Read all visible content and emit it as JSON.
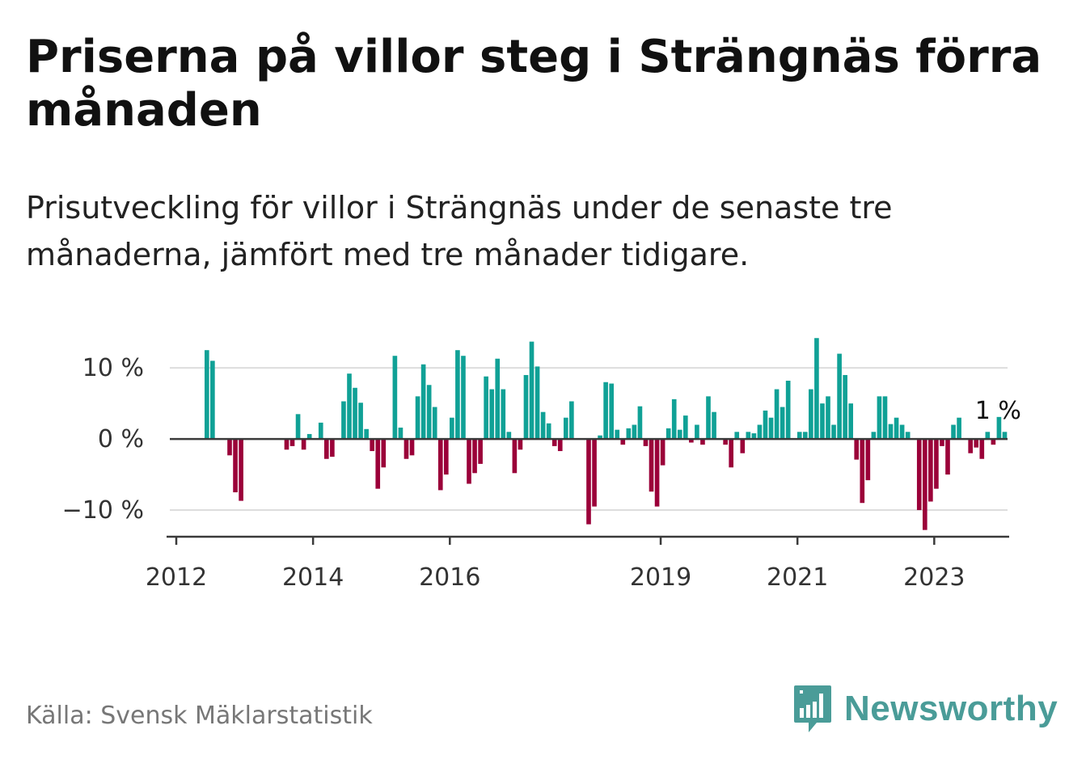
{
  "title": "Priserna på villor steg i Strängnäs förra månaden",
  "subtitle": "Prisutveckling för villor i Strängnäs under de senaste tre månaderna, jämfört med tre månader tidigare.",
  "source": "Källa: Svensk Mäklarstatistik",
  "brand": {
    "name": "Newsworthy",
    "icon": "bar-chart-speech-icon",
    "color": "#4a9c98"
  },
  "colors": {
    "positive": "#10a196",
    "negative": "#9b0039",
    "zero_line": "#3a3a3a",
    "grid": "#dddddd"
  },
  "chart_data": {
    "type": "bar",
    "title": "",
    "xlabel": "",
    "ylabel": "",
    "ylim": [
      -15,
      14
    ],
    "grid": true,
    "y_ticks": [
      {
        "value": 10,
        "label": "10 %"
      },
      {
        "value": 0,
        "label": "0 %"
      },
      {
        "value": -10,
        "label": "−10 %"
      }
    ],
    "x_ticks": [
      {
        "index": 0,
        "label": "2012"
      },
      {
        "index": 24,
        "label": "2014"
      },
      {
        "index": 48,
        "label": "2016"
      },
      {
        "index": 85,
        "label": "2019"
      },
      {
        "index": 109,
        "label": "2021"
      },
      {
        "index": 133,
        "label": "2023"
      }
    ],
    "annotation": {
      "index": 144,
      "label": "1 %"
    },
    "values": [
      null,
      null,
      null,
      null,
      null,
      null,
      12.5,
      11,
      null,
      null,
      -2.3,
      -7.5,
      -8.7,
      null,
      null,
      null,
      null,
      null,
      null,
      null,
      null,
      null,
      null,
      null,
      null,
      null,
      null,
      null,
      null,
      null,
      null,
      null,
      null,
      null,
      null,
      null,
      null,
      null,
      null,
      null,
      null,
      null,
      null,
      null,
      null,
      null,
      null,
      null,
      null,
      null,
      null,
      null,
      null,
      null,
      null,
      null,
      null,
      null,
      null,
      null,
      null,
      null,
      null,
      null,
      null,
      null,
      null,
      null,
      null,
      null,
      null,
      null,
      null,
      null,
      null,
      null,
      null,
      null,
      null,
      null,
      null,
      null,
      null,
      null,
      null,
      null,
      null,
      null,
      null,
      null,
      null,
      null,
      null,
      null,
      null,
      null,
      null,
      null,
      null,
      null,
      null,
      null,
      null,
      null,
      null,
      null,
      null,
      null,
      null,
      null,
      null,
      null,
      null,
      null,
      null,
      null,
      null,
      null,
      null,
      null,
      null,
      null,
      null,
      null,
      null,
      null,
      null,
      null,
      null,
      null,
      null,
      null,
      null,
      null,
      null,
      null,
      null,
      null,
      null,
      null,
      null,
      null,
      null,
      null,
      null
    ]
  }
}
